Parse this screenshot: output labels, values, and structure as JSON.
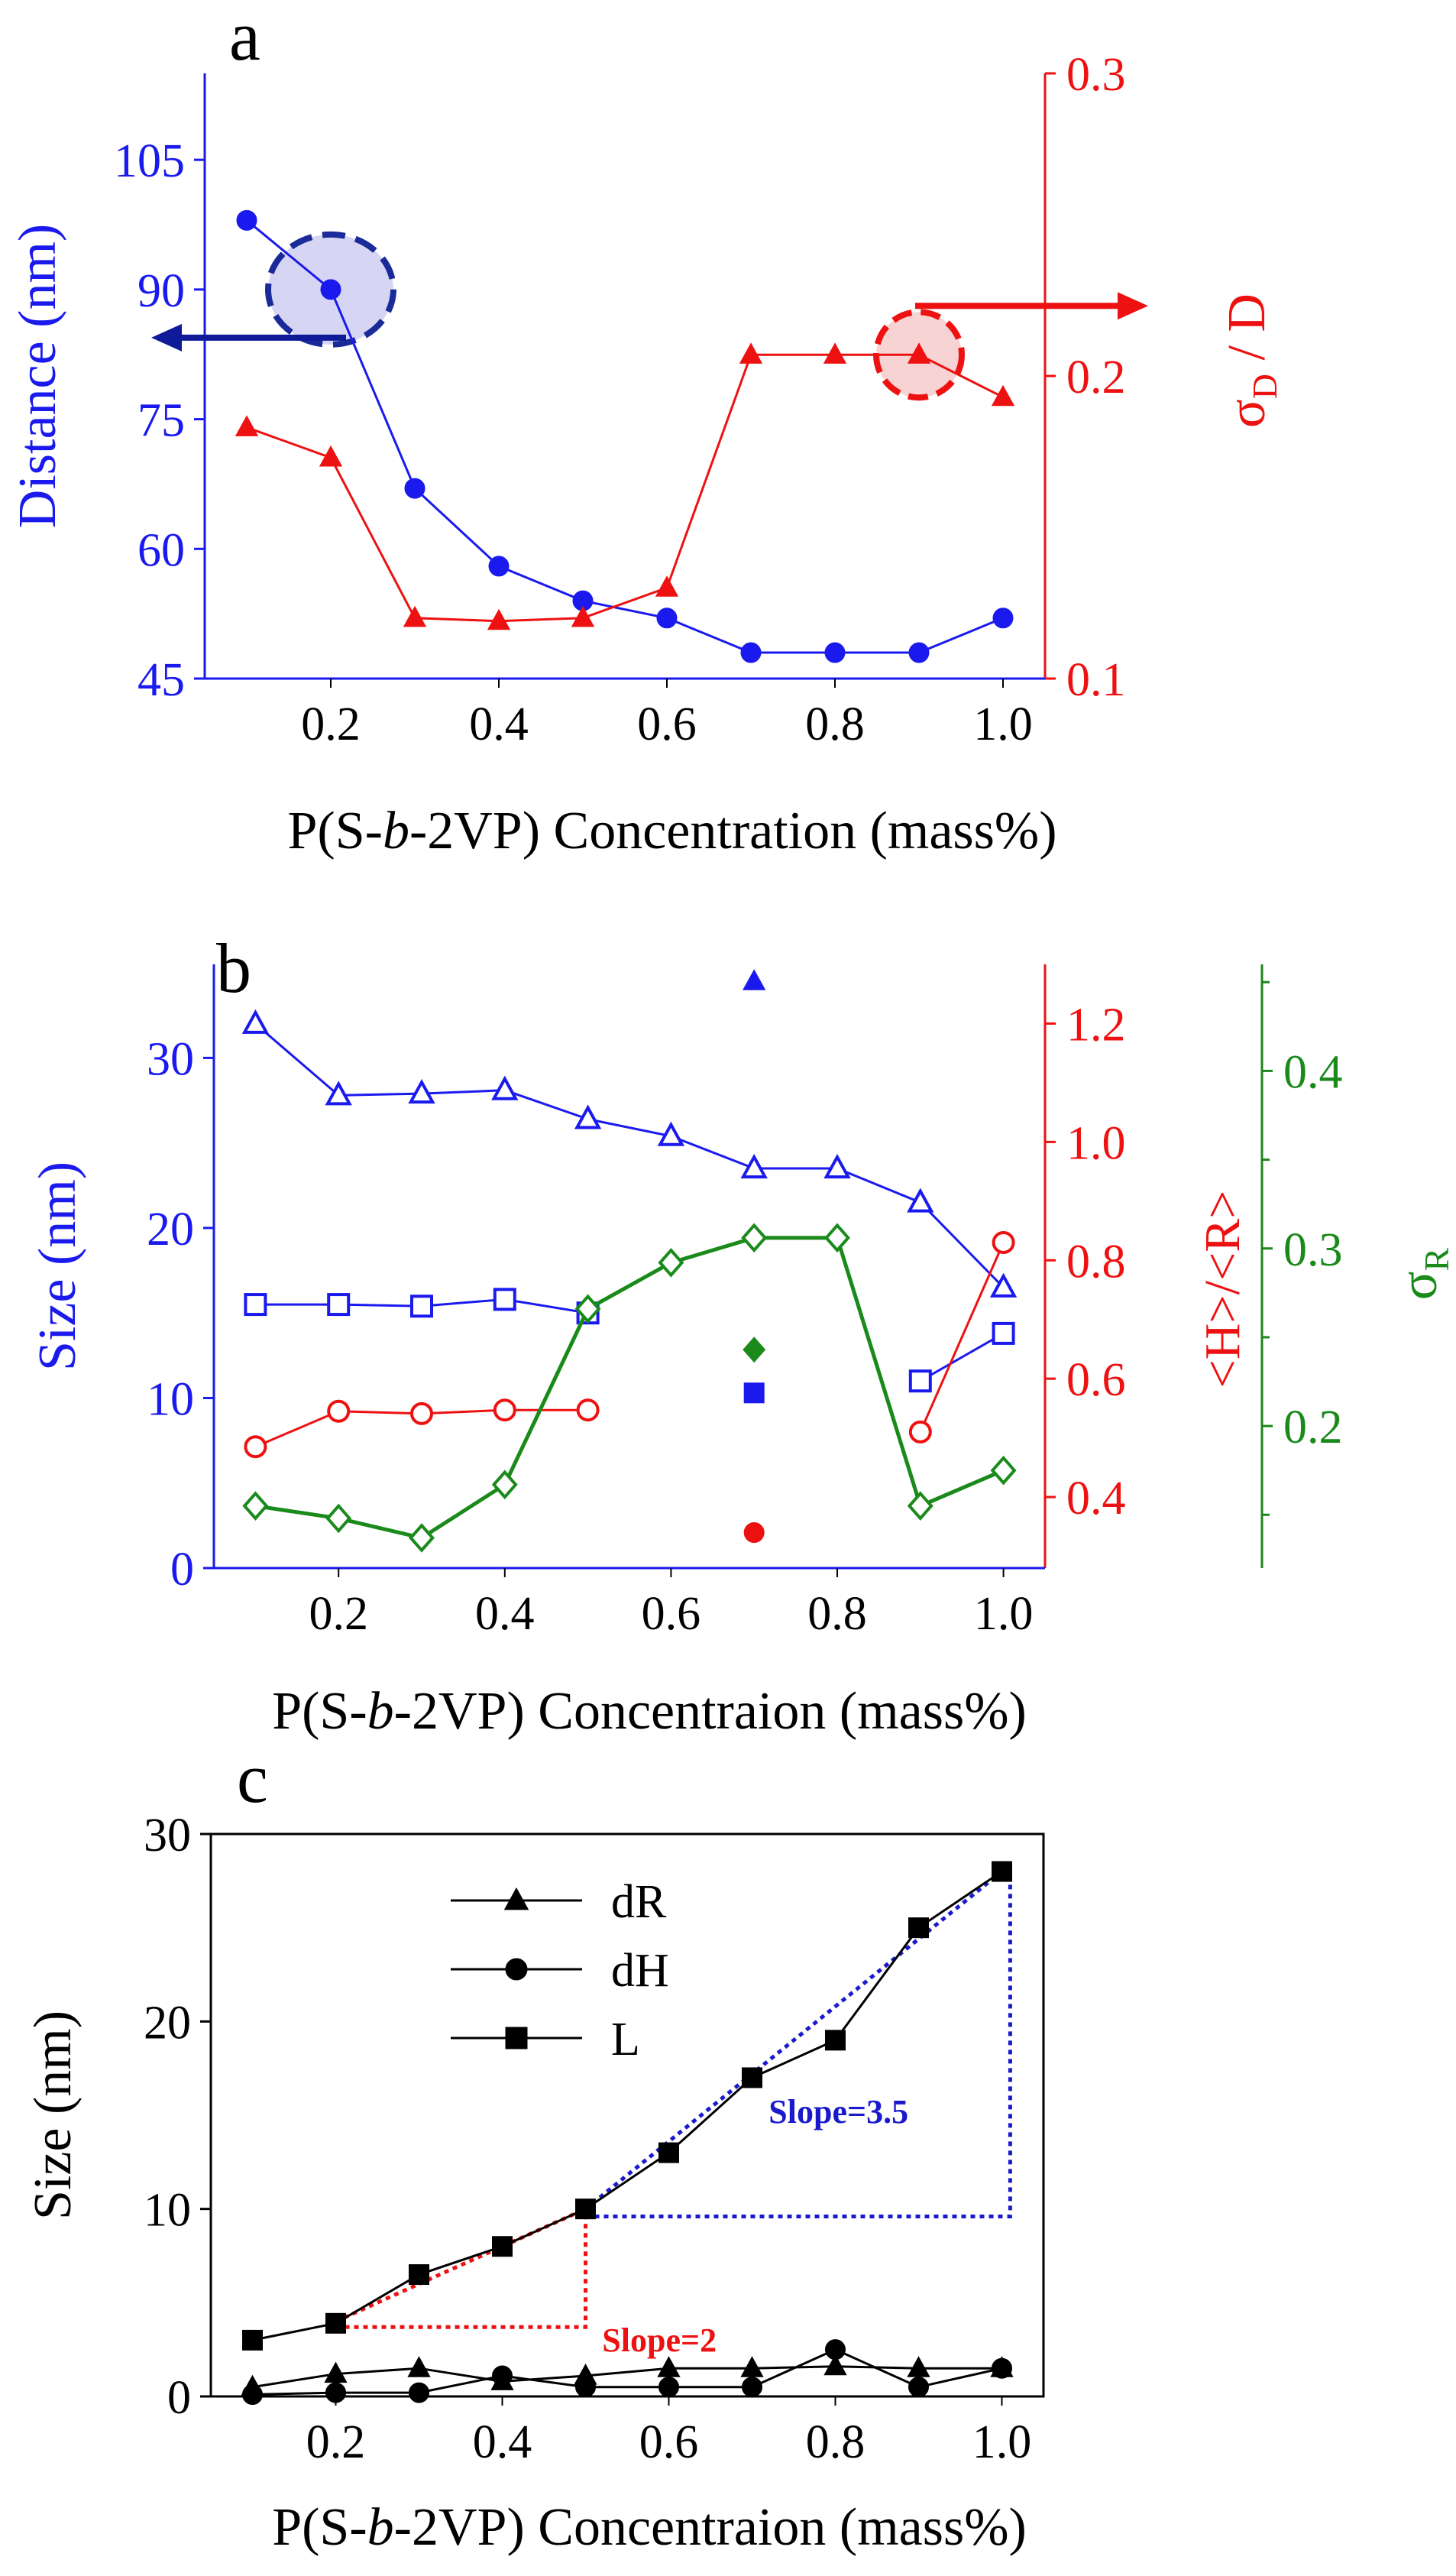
{
  "chart_data": [
    {
      "panel": "a",
      "type": "line",
      "title": "",
      "xlabel_parts": [
        "P(S-",
        "b",
        "-2VP) Concentration (mass%)"
      ],
      "ylabel": "Distance (nm)",
      "y2label_main": "σ",
      "y2label_sub": "D",
      "y2label_tail": " / D",
      "x": [
        0.1,
        0.2,
        0.3,
        0.4,
        0.5,
        0.6,
        0.7,
        0.8,
        0.9,
        1.0
      ],
      "xlim": [
        0.05,
        1.05
      ],
      "xticks": [
        "0.2",
        "0.4",
        "0.6",
        "0.8",
        "1.0"
      ],
      "ylim": [
        45,
        115
      ],
      "yticks": [
        "45",
        "60",
        "75",
        "90",
        "105"
      ],
      "y2lim": [
        0.1,
        0.3
      ],
      "y2ticks": [
        "0.1",
        "0.2",
        "0.3"
      ],
      "colors": {
        "left": "#1a1aee",
        "right": "#ee1111",
        "arrow_blue": "#0f1a99"
      },
      "series": [
        {
          "name": "Distance",
          "axis": "left",
          "marker": "circle",
          "values": [
            98,
            90,
            67,
            58,
            54,
            52,
            48,
            48,
            48,
            52
          ]
        },
        {
          "name": "σD / D",
          "axis": "right",
          "marker": "triangle",
          "values": [
            0.183,
            0.173,
            0.12,
            0.119,
            0.12,
            0.13,
            0.207,
            0.207,
            0.207,
            0.193
          ]
        }
      ]
    },
    {
      "panel": "b",
      "type": "line",
      "title": "",
      "xlabel_parts": [
        "P(S-",
        "b",
        "-2VP) Concentraion (mass%)"
      ],
      "ylabel": "Size (nm)",
      "y2label": "<H>/<R>",
      "y3label_main": "σ",
      "y3label_sub": "R",
      "x": [
        0.1,
        0.2,
        0.3,
        0.4,
        0.5,
        0.6,
        0.7,
        0.8,
        0.9,
        1.0
      ],
      "xlim": [
        0.05,
        1.05
      ],
      "xticks": [
        "0.2",
        "0.4",
        "0.6",
        "0.8",
        "1.0"
      ],
      "ylim": [
        0,
        35.5
      ],
      "yticks": [
        "0",
        "10",
        "20",
        "30"
      ],
      "y2lim": [
        0.28,
        1.3
      ],
      "y2ticks": [
        "0.4",
        "0.6",
        "0.8",
        "1.0",
        "1.2"
      ],
      "y3lim": [
        0.12,
        0.46
      ],
      "y3ticks": [
        "0.2",
        "0.3",
        "0.4"
      ],
      "colors": {
        "left": "#1a1aee",
        "right": "#ee1111",
        "third": "#1a8a1a"
      },
      "series": [
        {
          "name": "open triangles",
          "axis": "left",
          "marker": "triangle-open",
          "values": [
            32,
            27.8,
            27.9,
            28.1,
            26.4,
            25.4,
            23.5,
            23.5,
            21.5,
            16.5
          ]
        },
        {
          "name": "open squares",
          "axis": "left",
          "marker": "square-open",
          "values": [
            15.5,
            15.5,
            15.4,
            15.8,
            15,
            null,
            null,
            null,
            11,
            13.8
          ]
        },
        {
          "name": "<H>/<R>",
          "axis": "right",
          "marker": "circle-open",
          "values": [
            0.485,
            0.545,
            0.541,
            0.547,
            0.547,
            null,
            null,
            null,
            0.51,
            0.83
          ]
        },
        {
          "name": "σR",
          "axis": "third",
          "marker": "diamond-open",
          "values": [
            0.155,
            0.148,
            0.137,
            0.167,
            0.266,
            0.292,
            0.306,
            0.306,
            0.155,
            0.175
          ]
        }
      ],
      "filled_points": [
        {
          "x": 0.7,
          "axis": "left",
          "marker": "triangle",
          "color": "blue",
          "value": 34.5
        },
        {
          "x": 0.7,
          "axis": "third",
          "marker": "diamond",
          "color": "green",
          "value": 0.243
        },
        {
          "x": 0.7,
          "axis": "left",
          "marker": "square",
          "color": "blue",
          "value": 10.3
        },
        {
          "x": 0.7,
          "axis": "right",
          "marker": "circle",
          "color": "red",
          "value": 0.34
        }
      ]
    },
    {
      "panel": "c",
      "type": "line",
      "title": "",
      "xlabel_parts": [
        "P(S-",
        "b",
        "-2VP) Concentraion (mass%)"
      ],
      "ylabel": "Size (nm)",
      "x": [
        0.1,
        0.2,
        0.3,
        0.4,
        0.5,
        0.6,
        0.7,
        0.8,
        0.9,
        1.0
      ],
      "xlim": [
        0.05,
        1.05
      ],
      "xticks": [
        "0.2",
        "0.4",
        "0.6",
        "0.8",
        "1.0"
      ],
      "ylim": [
        0,
        30
      ],
      "yticks": [
        "0",
        "10",
        "20",
        "30"
      ],
      "legend": {
        "position": "top-left",
        "entries": [
          "dR",
          "dH",
          "L"
        ]
      },
      "series": [
        {
          "name": "dR",
          "marker": "triangle",
          "values": [
            0.5,
            1.2,
            1.5,
            0.8,
            1.1,
            1.5,
            1.5,
            1.6,
            1.5,
            1.5
          ]
        },
        {
          "name": "dH",
          "marker": "circle",
          "values": [
            0.1,
            0.2,
            0.2,
            1.1,
            0.5,
            0.5,
            0.5,
            2.5,
            0.5,
            1.5
          ]
        },
        {
          "name": "L",
          "marker": "square",
          "values": [
            3,
            3.9,
            6.5,
            8,
            10,
            13,
            17,
            19,
            25,
            28
          ]
        }
      ],
      "annotations": [
        {
          "text": "Slope=2",
          "color": "#ee1111",
          "fit_from": [
            0.2,
            4
          ],
          "fit_to": [
            0.5,
            10
          ]
        },
        {
          "text": "Slope=3.5",
          "color": "#1a1acc",
          "fit_from": [
            0.5,
            10
          ],
          "fit_to": [
            1.0,
            28
          ]
        }
      ]
    }
  ]
}
